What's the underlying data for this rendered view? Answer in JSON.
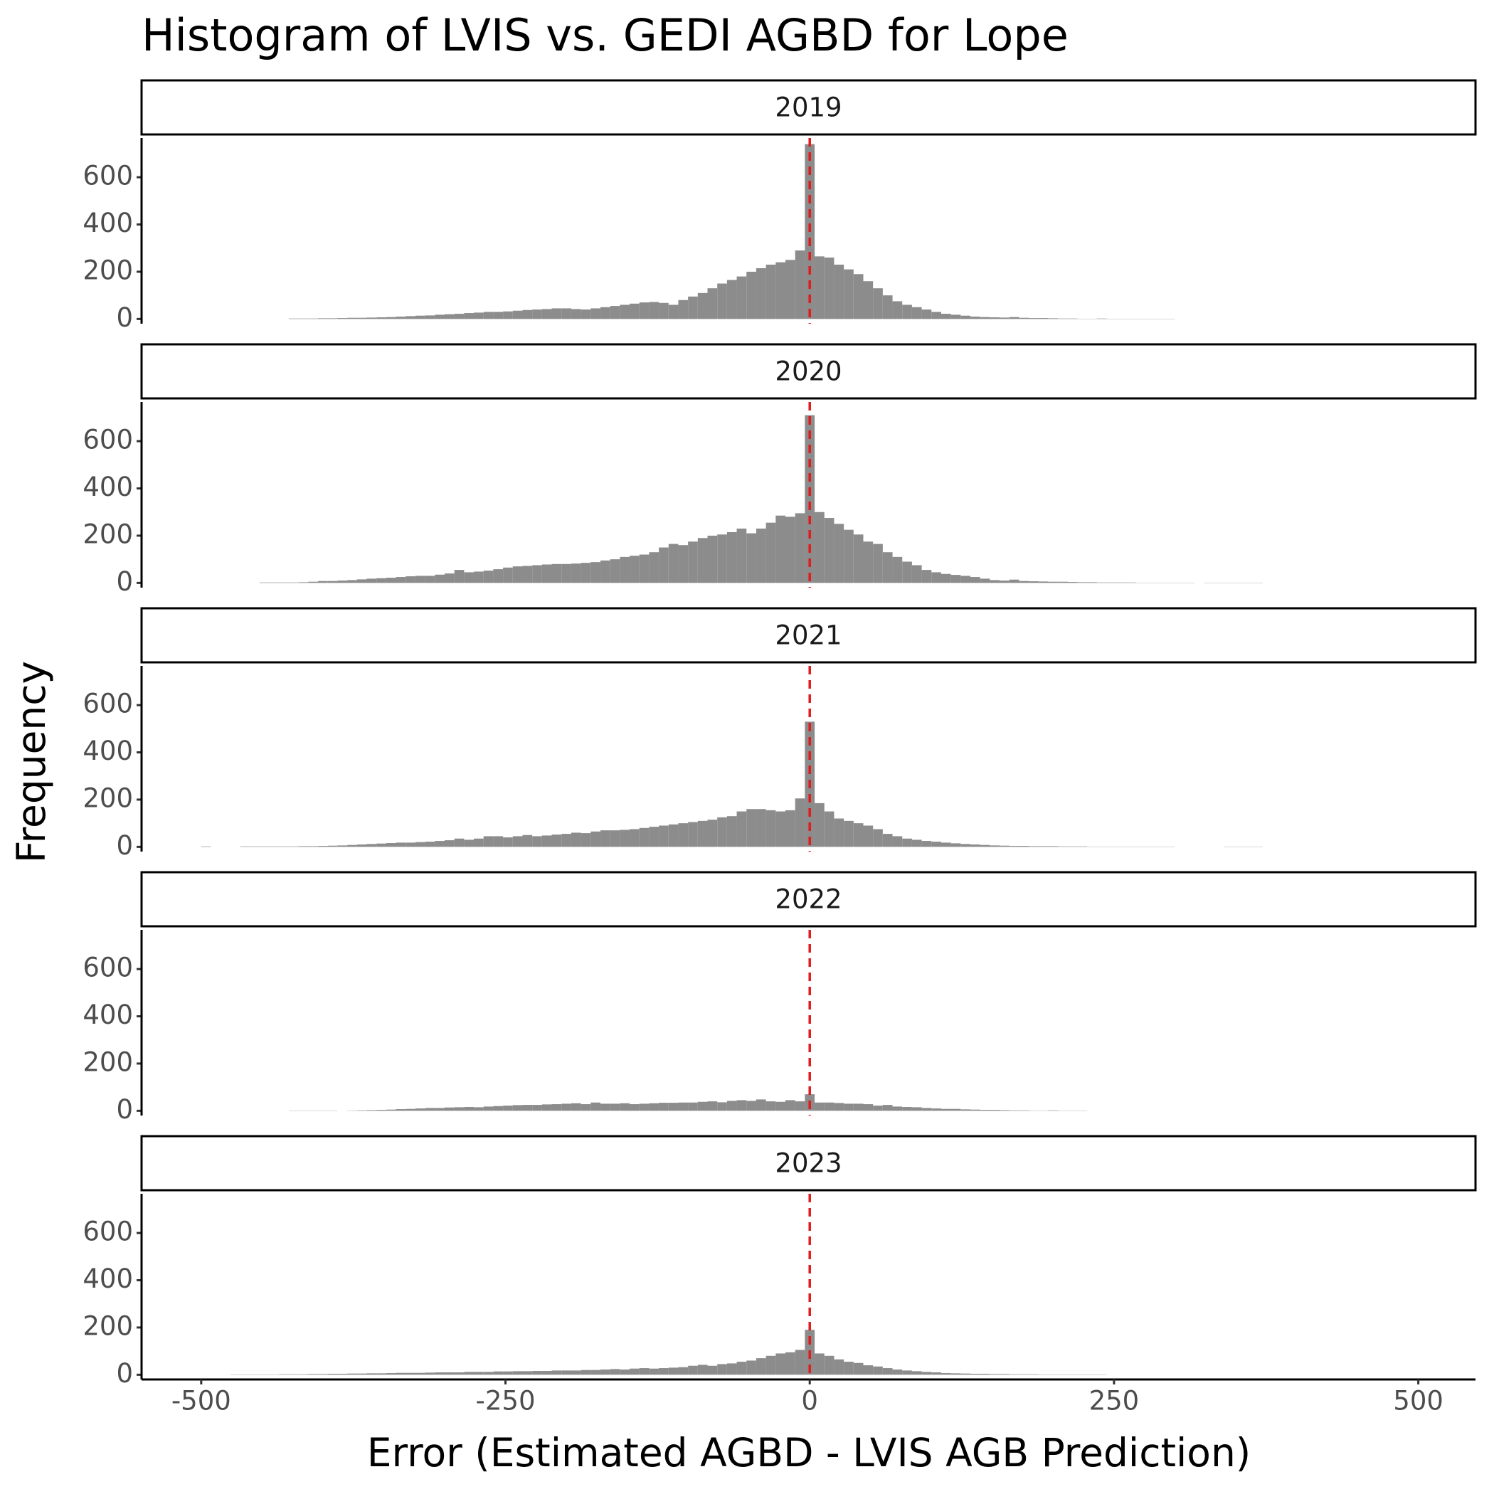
{
  "chart_data": {
    "type": "histogram",
    "title": "Histogram of LVIS vs. GEDI AGBD for Lope",
    "x_label": "Error (Estimated AGBD - LVIS AGB Prediction)",
    "y_label": "Frequency",
    "color": "#8c8c8c",
    "reference_line": {
      "x": 0,
      "color": "#e31a1c"
    },
    "xlim": [
      -549,
      547
    ],
    "xticks": [
      -500,
      -250,
      0,
      250,
      500
    ],
    "ylim": [
      -20,
      766
    ],
    "yticks": [
      0,
      200,
      400,
      600
    ],
    "bins": [
      -500,
      -492,
      -484,
      -476,
      -468,
      -460,
      -452,
      -444,
      -436,
      -428,
      -420,
      -412,
      -404,
      -396,
      -388,
      -380,
      -372,
      -364,
      -356,
      -348,
      -340,
      -332,
      -324,
      -316,
      -308,
      -300,
      -292,
      -284,
      -276,
      -268,
      -260,
      -252,
      -244,
      -236,
      -228,
      -220,
      -212,
      -204,
      -196,
      -188,
      -180,
      -172,
      -164,
      -156,
      -148,
      -140,
      -132,
      -124,
      -116,
      -108,
      -100,
      -92,
      -84,
      -76,
      -68,
      -60,
      -52,
      -44,
      -36,
      -28,
      -20,
      -12,
      -4,
      4,
      12,
      20,
      28,
      36,
      44,
      52,
      60,
      68,
      76,
      84,
      92,
      100,
      108,
      116,
      124,
      132,
      140,
      148,
      156,
      164,
      172,
      180,
      188,
      196,
      204,
      212,
      220,
      228,
      236,
      244,
      252,
      260,
      268,
      276,
      284,
      292,
      300,
      308,
      316,
      324,
      332,
      340,
      348,
      356,
      364,
      372,
      380,
      388,
      396
    ],
    "panels": [
      {
        "name": "2019",
        "counts": [
          0,
          0,
          0,
          0,
          0,
          0,
          0,
          0,
          0,
          2,
          2,
          2,
          3,
          3,
          4,
          5,
          5,
          6,
          7,
          8,
          10,
          12,
          14,
          15,
          18,
          20,
          22,
          25,
          27,
          30,
          30,
          32,
          35,
          38,
          40,
          42,
          45,
          45,
          42,
          40,
          45,
          50,
          55,
          60,
          65,
          70,
          72,
          68,
          60,
          80,
          95,
          110,
          130,
          150,
          165,
          180,
          200,
          215,
          230,
          240,
          250,
          290,
          740,
          265,
          260,
          230,
          210,
          190,
          160,
          130,
          100,
          75,
          60,
          50,
          40,
          30,
          22,
          18,
          14,
          10,
          8,
          7,
          6,
          8,
          5,
          4,
          4,
          3,
          2,
          2,
          1,
          1,
          2,
          1,
          1,
          1,
          1,
          1,
          1,
          1,
          0,
          0,
          0,
          0,
          0,
          0,
          0,
          0,
          0,
          0,
          0,
          0
        ]
      },
      {
        "name": "2020",
        "counts": [
          0,
          0,
          0,
          0,
          0,
          0,
          2,
          2,
          2,
          2,
          3,
          5,
          8,
          8,
          10,
          12,
          15,
          18,
          20,
          22,
          25,
          28,
          30,
          30,
          35,
          40,
          55,
          45,
          48,
          52,
          58,
          65,
          70,
          72,
          75,
          78,
          80,
          80,
          82,
          85,
          88,
          95,
          100,
          110,
          115,
          120,
          130,
          150,
          165,
          160,
          175,
          190,
          200,
          205,
          215,
          230,
          210,
          230,
          255,
          285,
          280,
          295,
          710,
          300,
          275,
          250,
          225,
          205,
          175,
          165,
          130,
          110,
          90,
          75,
          55,
          45,
          38,
          34,
          30,
          25,
          18,
          12,
          10,
          14,
          8,
          7,
          6,
          5,
          5,
          4,
          3,
          3,
          2,
          2,
          2,
          2,
          1,
          1,
          1,
          1,
          1,
          1,
          0,
          1,
          1,
          1,
          1,
          1,
          1,
          0,
          0,
          0
        ]
      },
      {
        "name": "2021",
        "counts": [
          2,
          0,
          0,
          0,
          2,
          2,
          2,
          2,
          2,
          2,
          3,
          3,
          4,
          5,
          6,
          8,
          10,
          12,
          14,
          16,
          18,
          18,
          20,
          22,
          25,
          28,
          35,
          30,
          35,
          45,
          45,
          40,
          45,
          50,
          45,
          48,
          52,
          55,
          60,
          58,
          65,
          70,
          70,
          72,
          75,
          80,
          85,
          90,
          95,
          100,
          105,
          110,
          115,
          125,
          130,
          150,
          160,
          160,
          155,
          150,
          155,
          205,
          530,
          185,
          150,
          120,
          110,
          100,
          90,
          75,
          55,
          45,
          35,
          30,
          25,
          22,
          18,
          15,
          12,
          10,
          8,
          6,
          5,
          4,
          4,
          3,
          3,
          3,
          2,
          2,
          2,
          1,
          1,
          1,
          1,
          1,
          1,
          1,
          1,
          1,
          0,
          0,
          0,
          0,
          0,
          1,
          1,
          1,
          1,
          0,
          0,
          0
        ]
      },
      {
        "name": "2022",
        "counts": [
          0,
          0,
          0,
          0,
          0,
          0,
          0,
          0,
          0,
          1,
          1,
          1,
          1,
          1,
          0,
          1,
          2,
          3,
          4,
          5,
          7,
          8,
          10,
          12,
          12,
          14,
          15,
          16,
          15,
          18,
          20,
          22,
          24,
          25,
          25,
          27,
          28,
          30,
          32,
          28,
          35,
          30,
          30,
          32,
          28,
          30,
          32,
          34,
          34,
          35,
          35,
          38,
          40,
          36,
          42,
          45,
          42,
          48,
          40,
          38,
          45,
          40,
          70,
          35,
          35,
          33,
          30,
          30,
          28,
          22,
          25,
          18,
          16,
          15,
          12,
          10,
          8,
          8,
          6,
          5,
          4,
          4,
          3,
          2,
          2,
          1,
          1,
          2,
          1,
          1,
          1,
          0,
          0,
          0,
          0,
          0,
          0,
          0,
          0,
          0,
          0,
          0,
          0,
          0,
          0,
          0,
          0,
          0,
          0,
          0,
          0,
          0
        ]
      },
      {
        "name": "2023",
        "counts": [
          0,
          0,
          0,
          1,
          1,
          1,
          1,
          1,
          2,
          2,
          2,
          3,
          3,
          4,
          4,
          5,
          5,
          6,
          6,
          7,
          8,
          8,
          8,
          9,
          10,
          10,
          10,
          12,
          12,
          12,
          14,
          14,
          15,
          15,
          16,
          16,
          18,
          18,
          18,
          20,
          20,
          22,
          24,
          22,
          26,
          28,
          26,
          28,
          30,
          32,
          38,
          42,
          38,
          45,
          48,
          55,
          60,
          70,
          80,
          90,
          95,
          105,
          190,
          90,
          80,
          65,
          55,
          50,
          40,
          35,
          28,
          22,
          18,
          15,
          12,
          10,
          7,
          6,
          5,
          4,
          4,
          3,
          3,
          2,
          2,
          2,
          1,
          1,
          1,
          1,
          1,
          1,
          1,
          0,
          0,
          0,
          0,
          0,
          0,
          0,
          0,
          0,
          0,
          0,
          0,
          0,
          0,
          0,
          0,
          0,
          0,
          0
        ]
      }
    ]
  }
}
